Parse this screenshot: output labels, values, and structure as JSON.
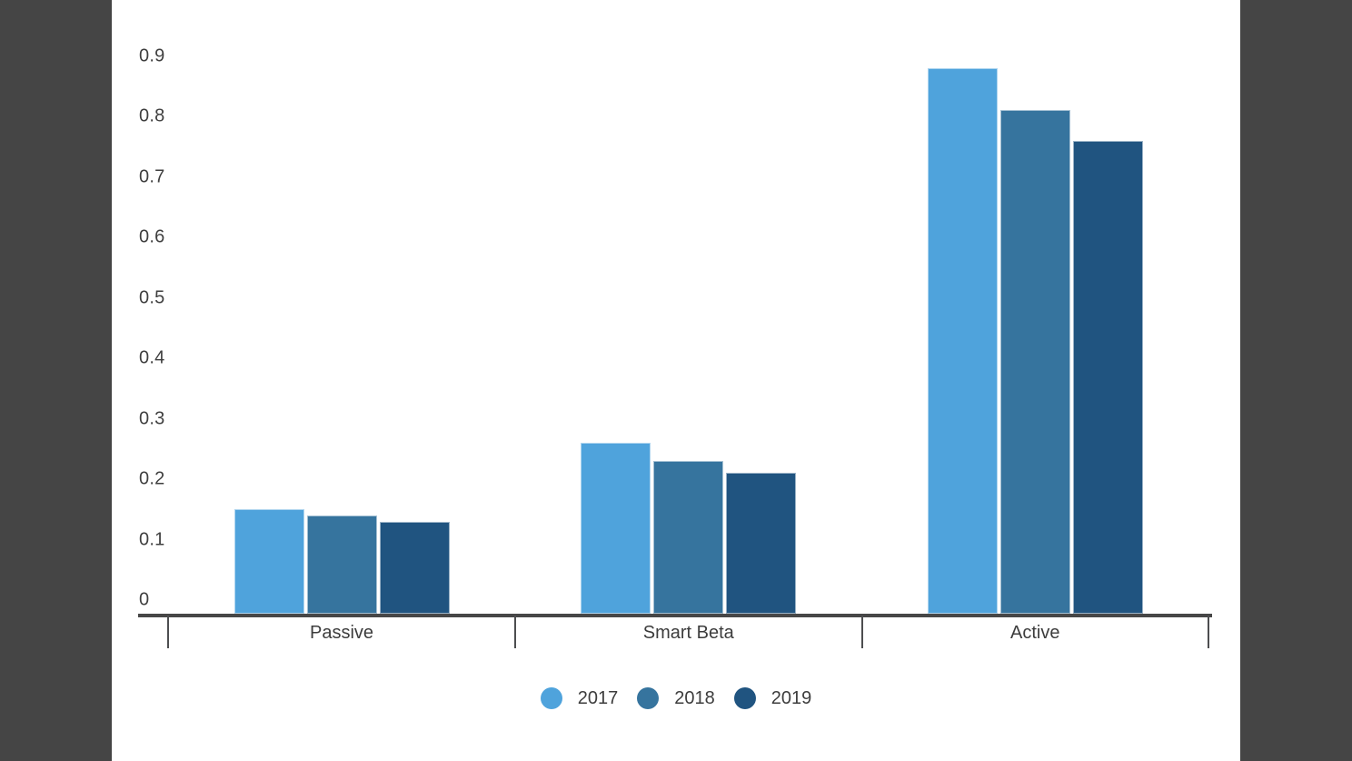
{
  "window": {
    "frame_color": "#454545",
    "slide_background": "#ffffff"
  },
  "chart_data": {
    "type": "bar",
    "title": "",
    "xlabel": "",
    "ylabel": "",
    "categories": [
      "Passive",
      "Smart Beta",
      "Active"
    ],
    "series": [
      {
        "name": "2017",
        "color": "#4FA3DC",
        "values": [
          0.15,
          0.26,
          0.88
        ]
      },
      {
        "name": "2018",
        "color": "#36749E",
        "values": [
          0.14,
          0.23,
          0.81
        ]
      },
      {
        "name": "2019",
        "color": "#205480",
        "values": [
          0.13,
          0.21,
          0.76
        ]
      }
    ],
    "ylim": [
      0,
      0.9
    ],
    "ytick_interval": 0.1,
    "ytick_labels": [
      "0",
      "0.1",
      "0.2",
      "0.3",
      "0.4",
      "0.5",
      "0.6",
      "0.7",
      "0.8",
      "0.9"
    ],
    "grid": false,
    "legend_position": "bottom",
    "colors": {
      "axis": "#474747",
      "tick": "#4d4e50",
      "text": "#3f3f3f"
    }
  }
}
